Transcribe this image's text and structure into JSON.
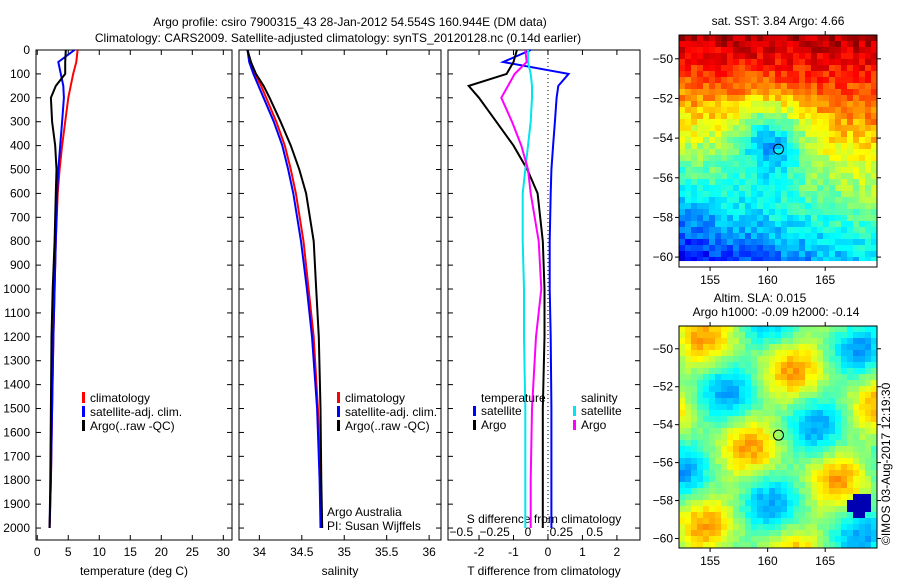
{
  "title_line1": "Argo profile: csiro 7900315_43 28-Jan-2012 54.554S 160.944E (DM data)",
  "title_line2": "Climatology: CARS2009. Satellite-adjusted climatology: synTS_20120128.nc (0.14d earlier)",
  "credit": "©IMOS 03-Aug-2017 12:19:30",
  "colors": {
    "climatology": "#ff0000",
    "satellite": "#0000ff",
    "argo": "#000000",
    "sal_satellite": "#00e5ee",
    "sal_argo": "#ff00ff"
  },
  "chart_data": [
    {
      "type": "line",
      "xlabel": "temperature (deg C)",
      "ylabel": "",
      "xlim": [
        -0.2,
        31.4
      ],
      "ylim": [
        2050,
        0
      ],
      "xticks": [
        "0",
        "5",
        "10",
        "15",
        "20",
        "25",
        "30"
      ],
      "yticks": [
        "0",
        "100",
        "200",
        "300",
        "400",
        "500",
        "600",
        "700",
        "800",
        "900",
        "1000",
        "1100",
        "1200",
        "1300",
        "1400",
        "1500",
        "1600",
        "1700",
        "1800",
        "1900",
        "2000"
      ],
      "depth": [
        0,
        50,
        100,
        150,
        200,
        300,
        400,
        500,
        600,
        800,
        1000,
        1200,
        1500,
        1800,
        2000
      ],
      "legend": [
        "climatology",
        "satellite-adj. clim.",
        "Argo(..raw -QC)"
      ],
      "series": [
        {
          "name": "climatology",
          "values": [
            6.5,
            6.3,
            5.8,
            5.4,
            5.0,
            4.5,
            4.0,
            3.6,
            3.3,
            3.0,
            2.8,
            2.6,
            2.4,
            2.2,
            2.0
          ]
        },
        {
          "name": "satellite-adj. clim.",
          "values": [
            6.0,
            3.4,
            3.8,
            4.2,
            4.3,
            4.0,
            3.7,
            3.4,
            3.2,
            3.0,
            2.8,
            2.6,
            2.4,
            2.2,
            2.0
          ]
        },
        {
          "name": "Argo(..raw -QC)",
          "values": [
            4.6,
            4.5,
            4.5,
            3.0,
            2.2,
            2.4,
            2.9,
            3.1,
            3.0,
            2.8,
            2.5,
            2.3,
            2.2,
            2.1,
            2.0
          ]
        }
      ]
    },
    {
      "type": "line",
      "xlabel": "salinity",
      "xlim": [
        33.76,
        36.14
      ],
      "ylim": [
        2050,
        0
      ],
      "xticks": [
        "34",
        "34.5",
        "35",
        "35.5",
        "36"
      ],
      "depth": [
        0,
        50,
        100,
        150,
        200,
        300,
        400,
        500,
        600,
        800,
        1000,
        1200,
        1500,
        1800,
        2000
      ],
      "legend": [
        "climatology",
        "satellite-adj. clim.",
        "Argo(..raw -QC)"
      ],
      "annotation": [
        "Argo Australia",
        "PI: Susan Wijffels"
      ],
      "series": [
        {
          "name": "climatology",
          "values": [
            33.86,
            33.9,
            33.95,
            34.02,
            34.08,
            34.2,
            34.3,
            34.37,
            34.43,
            34.52,
            34.58,
            34.64,
            34.69,
            34.72,
            34.73
          ]
        },
        {
          "name": "satellite-adj. clim.",
          "values": [
            33.86,
            33.88,
            33.93,
            33.99,
            34.05,
            34.17,
            34.27,
            34.34,
            34.4,
            34.49,
            34.56,
            34.62,
            34.68,
            34.71,
            34.72
          ]
        },
        {
          "name": "Argo(..raw -QC)",
          "values": [
            33.86,
            33.9,
            33.96,
            34.05,
            34.12,
            34.25,
            34.37,
            34.47,
            34.55,
            34.64,
            34.67,
            34.7,
            34.72,
            34.73,
            34.74
          ]
        }
      ]
    },
    {
      "type": "line",
      "xlabel": "T difference from climatology",
      "x2label": "S difference from climatology",
      "xlim": [
        -2.9,
        2.67
      ],
      "x2lim": [
        -0.6,
        0.84
      ],
      "ylim": [
        2050,
        0
      ],
      "xticks": [
        "-2",
        "-1",
        "0",
        "1",
        "2"
      ],
      "x2ticks": [
        "-0.5",
        "-0.25",
        "0",
        "0.25",
        "0.5"
      ],
      "depth": [
        0,
        50,
        100,
        150,
        200,
        300,
        400,
        500,
        600,
        800,
        1000,
        1200,
        1500,
        1800,
        2000
      ],
      "legend_temperature": {
        "title": "temperature",
        "items": [
          "satellite",
          "Argo"
        ]
      },
      "legend_salinity": {
        "title": "salinity",
        "items": [
          "satellite",
          "Argo"
        ]
      },
      "series": [
        {
          "name": "temperature satellite",
          "axis": "T",
          "values": [
            -0.5,
            -1.3,
            0.6,
            0.3,
            0.25,
            0.2,
            0.15,
            0.1,
            0.08,
            0.05,
            0.05,
            0.08,
            0.1,
            0.1,
            0.1
          ]
        },
        {
          "name": "temperature Argo",
          "axis": "T",
          "values": [
            -0.9,
            -1.0,
            -1.2,
            -2.3,
            -2.0,
            -1.5,
            -1.0,
            -0.6,
            -0.3,
            -0.15,
            -0.1,
            -0.1,
            -0.15,
            -0.15,
            -0.15
          ]
        },
        {
          "name": "salinity satellite",
          "axis": "S",
          "values": [
            0.0,
            0.0,
            0.02,
            0.03,
            0.03,
            0.02,
            0.0,
            -0.02,
            -0.04,
            -0.04,
            -0.03,
            -0.03,
            -0.02,
            -0.02,
            -0.02
          ]
        },
        {
          "name": "salinity Argo",
          "axis": "S",
          "values": [
            -0.02,
            -0.01,
            -0.1,
            -0.15,
            -0.2,
            -0.12,
            -0.05,
            0.0,
            0.02,
            0.08,
            0.1,
            0.06,
            0.03,
            0.02,
            0.02
          ]
        }
      ]
    },
    {
      "type": "heatmap",
      "title": "sat. SST: 3.84  Argo: 4.66",
      "xlim": [
        152.3,
        169.5
      ],
      "ylim": [
        -60.5,
        -48.8
      ],
      "xticks": [
        "155",
        "160",
        "165"
      ],
      "yticks": [
        "-50",
        "-52",
        "-54",
        "-56",
        "-58",
        "-60"
      ],
      "profile_location": [
        160.944,
        -54.554
      ]
    },
    {
      "type": "heatmap",
      "title_line1": "Altim. SLA: 0.015",
      "title_line2": "Argo h1000: -0.09 h2000: -0.14",
      "xlim": [
        152.3,
        169.5
      ],
      "ylim": [
        -60.5,
        -48.8
      ],
      "xticks": [
        "155",
        "160",
        "165"
      ],
      "yticks": [
        "-50",
        "-52",
        "-54",
        "-56",
        "-58",
        "-60"
      ],
      "profile_location": [
        160.944,
        -54.554
      ]
    }
  ]
}
